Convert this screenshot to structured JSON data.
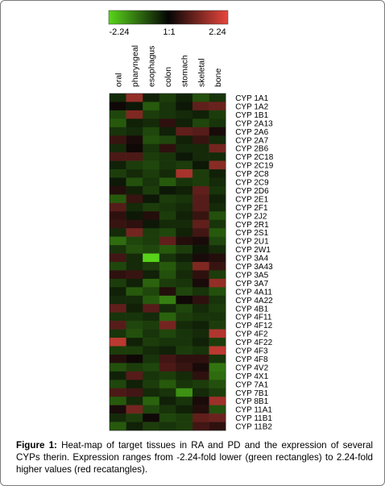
{
  "chart_data": {
    "type": "heatmap",
    "colorbar": {
      "min_label": "-2.24",
      "mid_label": "1:1",
      "max_label": "2.24",
      "min_color": "#59d61a",
      "mid_color": "#050505",
      "max_color": "#e8463c"
    },
    "columns": [
      "oral",
      "pharyngeal",
      "esophagus",
      "colon",
      "stomach",
      "skeletal",
      "bone"
    ],
    "rows": [
      "CYP 1A1",
      "CYP 1A2",
      "CYP 1B1",
      "CYP 2A13",
      "CYP 2A6",
      "CYP 2A7",
      "CYP 2B6",
      "CYP 2C18",
      "CYP 2C19",
      "CYP 2C8",
      "CYP 2C9",
      "CYP 2D6",
      "CYP 2E1",
      "CYP 2F1",
      "CYP 2J2",
      "CYP 2R1",
      "CYP 2S1",
      "CYP 2U1",
      "CYP 2W1",
      "CYP 3A4",
      "CYP 3A43",
      "CYP 3A5",
      "CYP 3A7",
      "CYP 4A11",
      "CYP 4A22",
      "CYP 4B1",
      "CYP 4F11",
      "CYP 4F12",
      "CYP 4F2",
      "CYP 4F22",
      "CYP 4F3",
      "CYP 4F8",
      "CYP 4V2",
      "CYP 4X1",
      "CYP 7A1",
      "CYP 7B1",
      "CYP 8B1",
      "CYP 11A1",
      "CYP 11B1",
      "CYP 11B2"
    ],
    "values": [
      [
        -0.4,
        1.4,
        -0.3,
        -0.6,
        -0.3,
        -0.8,
        -0.5
      ],
      [
        0.1,
        -0.2,
        -0.9,
        -0.5,
        -0.2,
        0.9,
        1.0
      ],
      [
        -0.7,
        1.2,
        -0.6,
        -0.5,
        -0.4,
        -0.3,
        -0.6
      ],
      [
        -0.9,
        -0.3,
        -0.4,
        0.4,
        -0.3,
        -0.7,
        -0.5
      ],
      [
        -0.5,
        -0.4,
        -0.7,
        -0.3,
        0.9,
        0.8,
        0.2
      ],
      [
        0.5,
        0.2,
        -0.8,
        -0.7,
        -0.3,
        0.5,
        -0.4
      ],
      [
        -0.4,
        0.1,
        -0.5,
        0.4,
        -0.4,
        -0.4,
        1.1
      ],
      [
        0.7,
        0.7,
        -0.6,
        -0.5,
        -0.2,
        -0.4,
        -0.4
      ],
      [
        -0.3,
        -0.6,
        -0.7,
        -0.5,
        -0.6,
        -0.2,
        1.3
      ],
      [
        -0.6,
        -0.4,
        -0.6,
        -0.4,
        1.6,
        -0.6,
        -0.3
      ],
      [
        -0.2,
        -0.8,
        -0.5,
        -0.9,
        -0.5,
        -0.6,
        -0.4
      ],
      [
        0.3,
        -0.3,
        -0.6,
        -0.2,
        -0.3,
        0.9,
        -0.5
      ],
      [
        -0.9,
        0.5,
        -0.2,
        -0.6,
        -0.5,
        0.8,
        -0.3
      ],
      [
        0.8,
        -0.4,
        -0.6,
        -0.5,
        -0.4,
        0.8,
        -0.4
      ],
      [
        0.4,
        -0.2,
        0.3,
        -0.6,
        -0.3,
        0.5,
        -0.8
      ],
      [
        0.5,
        0.4,
        -0.2,
        -0.4,
        -0.4,
        0.9,
        -0.5
      ],
      [
        -0.4,
        1.1,
        -0.6,
        -0.7,
        -0.3,
        0.6,
        -0.9
      ],
      [
        -1.1,
        -0.7,
        -0.6,
        0.9,
        0.3,
        0.2,
        -0.7
      ],
      [
        -0.5,
        -0.8,
        -0.7,
        -0.9,
        -0.6,
        -0.2,
        -0.4
      ],
      [
        0.6,
        -0.4,
        -2.2,
        -0.5,
        -0.3,
        0.2,
        0.3
      ],
      [
        -0.7,
        -0.4,
        -0.6,
        -0.9,
        -0.5,
        1.2,
        0.5
      ],
      [
        0.4,
        0.5,
        -0.3,
        -0.8,
        -0.4,
        0.4,
        -0.6
      ],
      [
        -0.6,
        -0.3,
        -1.0,
        -0.6,
        -0.5,
        0.2,
        1.4
      ],
      [
        -0.3,
        -0.9,
        -0.7,
        0.3,
        -0.7,
        -0.5,
        -0.8
      ],
      [
        -0.4,
        -0.4,
        -0.9,
        -1.3,
        0.1,
        0.4,
        -0.5
      ],
      [
        0.9,
        -0.3,
        0.8,
        -0.4,
        -0.7,
        -0.4,
        -0.6
      ],
      [
        -0.5,
        -0.5,
        -0.4,
        -1.0,
        -0.6,
        -0.5,
        -0.5
      ],
      [
        0.8,
        -0.7,
        -0.6,
        1.1,
        -0.4,
        -0.3,
        -0.6
      ],
      [
        -0.5,
        -0.8,
        -0.5,
        -0.7,
        -0.5,
        -0.4,
        1.7
      ],
      [
        1.8,
        -0.3,
        -0.6,
        -0.5,
        -0.5,
        -0.3,
        -0.6
      ],
      [
        -0.6,
        -0.6,
        -0.4,
        -0.3,
        -0.6,
        -0.5,
        1.8
      ],
      [
        0.3,
        0.1,
        -0.5,
        0.6,
        0.4,
        0.4,
        -0.5
      ],
      [
        -0.8,
        -0.6,
        -0.7,
        0.7,
        0.5,
        0.2,
        -1.2
      ],
      [
        -0.3,
        0.8,
        -0.5,
        -0.6,
        -0.4,
        0.4,
        -1.1
      ],
      [
        -0.7,
        -0.3,
        -0.6,
        -0.9,
        -0.5,
        -0.6,
        -0.8
      ],
      [
        0.7,
        0.6,
        -0.4,
        -0.5,
        -1.5,
        -0.4,
        -0.6
      ],
      [
        -0.9,
        -0.4,
        -1.0,
        -0.3,
        -0.5,
        0.2,
        1.5
      ],
      [
        0.2,
        1.1,
        -0.7,
        -0.5,
        -0.3,
        0.3,
        -0.8
      ],
      [
        -0.4,
        -0.6,
        0.1,
        -0.7,
        -0.6,
        0.9,
        1.0
      ],
      [
        -0.9,
        -0.3,
        -0.6,
        -0.5,
        -0.6,
        0.6,
        0.4
      ]
    ]
  },
  "caption": {
    "label": "Figure 1:",
    "text": " Heat-map of target tissues in RA and PD and the expression of several CYPs therin. Expression ranges from -2.24-fold lower (green rectangles) to 2.24-fold higher values (red recatangles)."
  }
}
